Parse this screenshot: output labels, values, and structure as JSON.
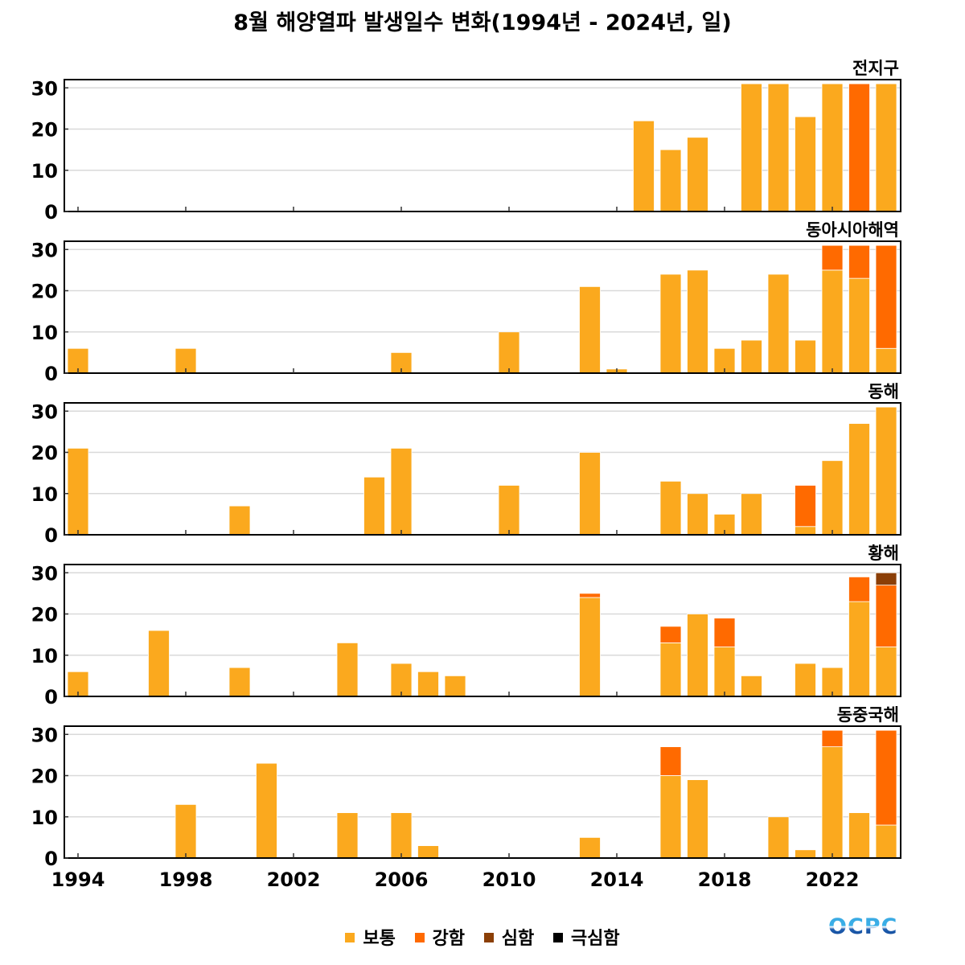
{
  "title": "8월 해양열파 발생일수 변화(1994년 - 2024년, 일)",
  "logo_text": "OCPC",
  "legend": [
    {
      "label": "보통",
      "color": "#FBA91E"
    },
    {
      "label": "강함",
      "color": "#FF6A00"
    },
    {
      "label": "심함",
      "color": "#8B3F07"
    },
    {
      "label": "극심함",
      "color": "#000000"
    }
  ],
  "chart_data": {
    "type": "bar",
    "stacked": true,
    "title": "8월 해양열파 발생일수 변화(1994년 - 2024년, 일)",
    "xlim": [
      1994,
      2024
    ],
    "ylim": [
      0,
      32
    ],
    "x_ticks": [
      1994,
      1998,
      2002,
      2006,
      2010,
      2014,
      2018,
      2022
    ],
    "x_tick_labels": [
      "1994",
      "1998",
      "2002",
      "2006",
      "2010",
      "2014",
      "2018",
      "2022"
    ],
    "y_ticks": [
      0,
      10,
      20,
      30
    ],
    "y_tick_labels": [
      "0",
      "10",
      "20",
      "30"
    ],
    "grid": true,
    "legend_position": "bottom",
    "categories": [
      "보통",
      "강함",
      "심함",
      "극심함"
    ],
    "panels": [
      {
        "name": "전지구",
        "bars": [
          {
            "year": 2015,
            "values": [
              22,
              0,
              0,
              0
            ]
          },
          {
            "year": 2016,
            "values": [
              15,
              0,
              0,
              0
            ]
          },
          {
            "year": 2017,
            "values": [
              18,
              0,
              0,
              0
            ]
          },
          {
            "year": 2019,
            "values": [
              31,
              0,
              0,
              0
            ]
          },
          {
            "year": 2020,
            "values": [
              31,
              0,
              0,
              0
            ]
          },
          {
            "year": 2021,
            "values": [
              23,
              0,
              0,
              0
            ]
          },
          {
            "year": 2022,
            "values": [
              31,
              0,
              0,
              0
            ]
          },
          {
            "year": 2023,
            "values": [
              0,
              31,
              0,
              0
            ]
          },
          {
            "year": 2024,
            "values": [
              31,
              0,
              0,
              0
            ]
          }
        ]
      },
      {
        "name": "동아시아해역",
        "bars": [
          {
            "year": 1994,
            "values": [
              6,
              0,
              0,
              0
            ]
          },
          {
            "year": 1998,
            "values": [
              6,
              0,
              0,
              0
            ]
          },
          {
            "year": 2006,
            "values": [
              5,
              0,
              0,
              0
            ]
          },
          {
            "year": 2010,
            "values": [
              10,
              0,
              0,
              0
            ]
          },
          {
            "year": 2013,
            "values": [
              21,
              0,
              0,
              0
            ]
          },
          {
            "year": 2014,
            "values": [
              1,
              0,
              0,
              0
            ]
          },
          {
            "year": 2016,
            "values": [
              24,
              0,
              0,
              0
            ]
          },
          {
            "year": 2017,
            "values": [
              25,
              0,
              0,
              0
            ]
          },
          {
            "year": 2018,
            "values": [
              6,
              0,
              0,
              0
            ]
          },
          {
            "year": 2019,
            "values": [
              8,
              0,
              0,
              0
            ]
          },
          {
            "year": 2020,
            "values": [
              24,
              0,
              0,
              0
            ]
          },
          {
            "year": 2021,
            "values": [
              8,
              0,
              0,
              0
            ]
          },
          {
            "year": 2022,
            "values": [
              25,
              6,
              0,
              0
            ]
          },
          {
            "year": 2023,
            "values": [
              23,
              8,
              0,
              0
            ]
          },
          {
            "year": 2024,
            "values": [
              6,
              25,
              0,
              0
            ]
          }
        ]
      },
      {
        "name": "동해",
        "bars": [
          {
            "year": 1994,
            "values": [
              21,
              0,
              0,
              0
            ]
          },
          {
            "year": 2000,
            "values": [
              7,
              0,
              0,
              0
            ]
          },
          {
            "year": 2005,
            "values": [
              14,
              0,
              0,
              0
            ]
          },
          {
            "year": 2006,
            "values": [
              21,
              0,
              0,
              0
            ]
          },
          {
            "year": 2010,
            "values": [
              12,
              0,
              0,
              0
            ]
          },
          {
            "year": 2013,
            "values": [
              20,
              0,
              0,
              0
            ]
          },
          {
            "year": 2016,
            "values": [
              13,
              0,
              0,
              0
            ]
          },
          {
            "year": 2017,
            "values": [
              10,
              0,
              0,
              0
            ]
          },
          {
            "year": 2018,
            "values": [
              5,
              0,
              0,
              0
            ]
          },
          {
            "year": 2019,
            "values": [
              10,
              0,
              0,
              0
            ]
          },
          {
            "year": 2021,
            "values": [
              2,
              10,
              0,
              0
            ]
          },
          {
            "year": 2022,
            "values": [
              18,
              0,
              0,
              0
            ]
          },
          {
            "year": 2023,
            "values": [
              27,
              0,
              0,
              0
            ]
          },
          {
            "year": 2024,
            "values": [
              31,
              0,
              0,
              0
            ]
          }
        ]
      },
      {
        "name": "황해",
        "bars": [
          {
            "year": 1994,
            "values": [
              6,
              0,
              0,
              0
            ]
          },
          {
            "year": 1997,
            "values": [
              16,
              0,
              0,
              0
            ]
          },
          {
            "year": 2000,
            "values": [
              7,
              0,
              0,
              0
            ]
          },
          {
            "year": 2004,
            "values": [
              13,
              0,
              0,
              0
            ]
          },
          {
            "year": 2006,
            "values": [
              8,
              0,
              0,
              0
            ]
          },
          {
            "year": 2007,
            "values": [
              6,
              0,
              0,
              0
            ]
          },
          {
            "year": 2008,
            "values": [
              5,
              0,
              0,
              0
            ]
          },
          {
            "year": 2013,
            "values": [
              24,
              1,
              0,
              0
            ]
          },
          {
            "year": 2016,
            "values": [
              13,
              4,
              0,
              0
            ]
          },
          {
            "year": 2017,
            "values": [
              20,
              0,
              0,
              0
            ]
          },
          {
            "year": 2018,
            "values": [
              12,
              7,
              0,
              0
            ]
          },
          {
            "year": 2019,
            "values": [
              5,
              0,
              0,
              0
            ]
          },
          {
            "year": 2021,
            "values": [
              8,
              0,
              0,
              0
            ]
          },
          {
            "year": 2022,
            "values": [
              7,
              0,
              0,
              0
            ]
          },
          {
            "year": 2023,
            "values": [
              23,
              6,
              0,
              0
            ]
          },
          {
            "year": 2024,
            "values": [
              12,
              15,
              3,
              0
            ]
          }
        ]
      },
      {
        "name": "동중국해",
        "bars": [
          {
            "year": 1998,
            "values": [
              13,
              0,
              0,
              0
            ]
          },
          {
            "year": 2001,
            "values": [
              23,
              0,
              0,
              0
            ]
          },
          {
            "year": 2004,
            "values": [
              11,
              0,
              0,
              0
            ]
          },
          {
            "year": 2006,
            "values": [
              11,
              0,
              0,
              0
            ]
          },
          {
            "year": 2007,
            "values": [
              3,
              0,
              0,
              0
            ]
          },
          {
            "year": 2013,
            "values": [
              5,
              0,
              0,
              0
            ]
          },
          {
            "year": 2016,
            "values": [
              20,
              7,
              0,
              0
            ]
          },
          {
            "year": 2017,
            "values": [
              19,
              0,
              0,
              0
            ]
          },
          {
            "year": 2020,
            "values": [
              10,
              0,
              0,
              0
            ]
          },
          {
            "year": 2021,
            "values": [
              2,
              0,
              0,
              0
            ]
          },
          {
            "year": 2022,
            "values": [
              27,
              4,
              0,
              0
            ]
          },
          {
            "year": 2023,
            "values": [
              11,
              0,
              0,
              0
            ]
          },
          {
            "year": 2024,
            "values": [
              8,
              23,
              0,
              0
            ]
          }
        ]
      }
    ]
  }
}
